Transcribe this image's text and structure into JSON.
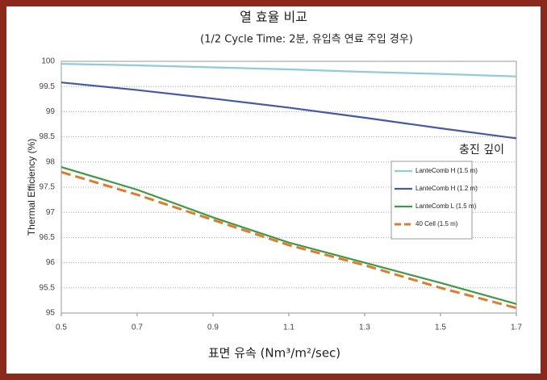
{
  "chart_data": {
    "type": "line",
    "title": "열 효율 비교",
    "subtitle": "(1/2 Cycle Time: 2분, 유입측 연료 주입 경우)",
    "x_label": "표면 유속 (Nm³/m²/sec)",
    "y_label": "Thermal Efficiency (%)",
    "annotation": "충진 깊이",
    "x": [
      0.5,
      0.7,
      0.9,
      1.1,
      1.3,
      1.5,
      1.7
    ],
    "xlim": [
      0.5,
      1.7
    ],
    "xticks": [
      0.5,
      0.7,
      0.9,
      1.1,
      1.3,
      1.5,
      1.7
    ],
    "ylim": [
      95,
      100
    ],
    "yticks": [
      95,
      95.5,
      96,
      96.5,
      97,
      97.5,
      98,
      98.5,
      99,
      99.5,
      100
    ],
    "grid": true,
    "legend": "right",
    "series": [
      {
        "name": "LanteComb H (1.5 m)",
        "color": "#8ecbdd",
        "dash": false,
        "values": [
          99.95,
          99.92,
          99.88,
          99.84,
          99.79,
          99.75,
          99.7
        ]
      },
      {
        "name": "LanteComb H (1.2 m)",
        "color": "#4659a6",
        "dash": false,
        "values": [
          99.58,
          99.43,
          99.26,
          99.08,
          98.88,
          98.67,
          98.47
        ]
      },
      {
        "name": "LanteComb L (1.5 m)",
        "color": "#3d9a44",
        "dash": false,
        "values": [
          97.9,
          97.45,
          96.9,
          96.4,
          96.0,
          95.6,
          95.18
        ]
      },
      {
        "name": "40 Cell (1.5 m)",
        "color": "#e07b2c",
        "dash": true,
        "values": [
          97.8,
          97.35,
          96.85,
          96.35,
          95.95,
          95.5,
          95.1
        ]
      }
    ]
  }
}
